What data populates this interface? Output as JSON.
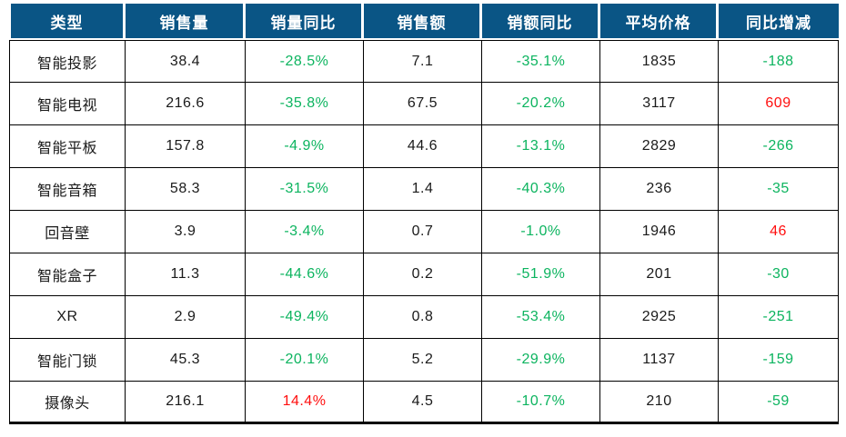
{
  "colors": {
    "header_bg": "#0A5585",
    "header_text": "#FFFFFF",
    "green": "#0CB45F",
    "red": "#FF0F0F",
    "text": "#1A1A1A",
    "border": "#000000"
  },
  "table": {
    "headers": [
      "类型",
      "销售量",
      "销量同比",
      "销售额",
      "销额同比",
      "平均价格",
      "同比增减"
    ],
    "rows": [
      {
        "cells": [
          {
            "text": "智能投影",
            "tone": "default"
          },
          {
            "text": "38.4",
            "tone": "default"
          },
          {
            "text": "-28.5%",
            "tone": "green"
          },
          {
            "text": "7.1",
            "tone": "default"
          },
          {
            "text": "-35.1%",
            "tone": "green"
          },
          {
            "text": "1835",
            "tone": "default"
          },
          {
            "text": "-188",
            "tone": "green"
          }
        ]
      },
      {
        "cells": [
          {
            "text": "智能电视",
            "tone": "default"
          },
          {
            "text": "216.6",
            "tone": "default"
          },
          {
            "text": "-35.8%",
            "tone": "green"
          },
          {
            "text": "67.5",
            "tone": "default"
          },
          {
            "text": "-20.2%",
            "tone": "green"
          },
          {
            "text": "3117",
            "tone": "default"
          },
          {
            "text": "609",
            "tone": "red"
          }
        ]
      },
      {
        "cells": [
          {
            "text": "智能平板",
            "tone": "default"
          },
          {
            "text": "157.8",
            "tone": "default"
          },
          {
            "text": "-4.9%",
            "tone": "green"
          },
          {
            "text": "44.6",
            "tone": "default"
          },
          {
            "text": "-13.1%",
            "tone": "green"
          },
          {
            "text": "2829",
            "tone": "default"
          },
          {
            "text": "-266",
            "tone": "green"
          }
        ]
      },
      {
        "cells": [
          {
            "text": "智能音箱",
            "tone": "default"
          },
          {
            "text": "58.3",
            "tone": "default"
          },
          {
            "text": "-31.5%",
            "tone": "green"
          },
          {
            "text": "1.4",
            "tone": "default"
          },
          {
            "text": "-40.3%",
            "tone": "green"
          },
          {
            "text": "236",
            "tone": "default"
          },
          {
            "text": "-35",
            "tone": "green"
          }
        ]
      },
      {
        "cells": [
          {
            "text": "回音壁",
            "tone": "default"
          },
          {
            "text": "3.9",
            "tone": "default"
          },
          {
            "text": "-3.4%",
            "tone": "green"
          },
          {
            "text": "0.7",
            "tone": "default"
          },
          {
            "text": "-1.0%",
            "tone": "green"
          },
          {
            "text": "1946",
            "tone": "default"
          },
          {
            "text": "46",
            "tone": "red"
          }
        ]
      },
      {
        "cells": [
          {
            "text": "智能盒子",
            "tone": "default"
          },
          {
            "text": "11.3",
            "tone": "default"
          },
          {
            "text": "-44.6%",
            "tone": "green"
          },
          {
            "text": "0.2",
            "tone": "default"
          },
          {
            "text": "-51.9%",
            "tone": "green"
          },
          {
            "text": "201",
            "tone": "default"
          },
          {
            "text": "-30",
            "tone": "green"
          }
        ]
      },
      {
        "cells": [
          {
            "text": "XR",
            "tone": "default"
          },
          {
            "text": "2.9",
            "tone": "default"
          },
          {
            "text": "-49.4%",
            "tone": "green"
          },
          {
            "text": "0.8",
            "tone": "default"
          },
          {
            "text": "-53.4%",
            "tone": "green"
          },
          {
            "text": "2925",
            "tone": "default"
          },
          {
            "text": "-251",
            "tone": "green"
          }
        ]
      },
      {
        "cells": [
          {
            "text": "智能门锁",
            "tone": "default"
          },
          {
            "text": "45.3",
            "tone": "default"
          },
          {
            "text": "-20.1%",
            "tone": "green"
          },
          {
            "text": "5.2",
            "tone": "default"
          },
          {
            "text": "-29.9%",
            "tone": "green"
          },
          {
            "text": "1137",
            "tone": "default"
          },
          {
            "text": "-159",
            "tone": "green"
          }
        ]
      },
      {
        "cells": [
          {
            "text": "摄像头",
            "tone": "default"
          },
          {
            "text": "216.1",
            "tone": "default"
          },
          {
            "text": "14.4%",
            "tone": "red"
          },
          {
            "text": "4.5",
            "tone": "default"
          },
          {
            "text": "-10.7%",
            "tone": "green"
          },
          {
            "text": "210",
            "tone": "default"
          },
          {
            "text": "-59",
            "tone": "green"
          }
        ]
      }
    ]
  },
  "chart_data": {
    "type": "table",
    "columns": [
      "类型",
      "销售量",
      "销量同比",
      "销售额",
      "销额同比",
      "平均价格",
      "同比增减"
    ],
    "rows": [
      [
        "智能投影",
        38.4,
        "-28.5%",
        7.1,
        "-35.1%",
        1835,
        -188
      ],
      [
        "智能电视",
        216.6,
        "-35.8%",
        67.5,
        "-20.2%",
        3117,
        609
      ],
      [
        "智能平板",
        157.8,
        "-4.9%",
        44.6,
        "-13.1%",
        2829,
        -266
      ],
      [
        "智能音箱",
        58.3,
        "-31.5%",
        1.4,
        "-40.3%",
        236,
        -35
      ],
      [
        "回音壁",
        3.9,
        "-3.4%",
        0.7,
        "-1.0%",
        1946,
        46
      ],
      [
        "智能盒子",
        11.3,
        "-44.6%",
        0.2,
        "-51.9%",
        201,
        -30
      ],
      [
        "XR",
        2.9,
        "-49.4%",
        0.8,
        "-53.4%",
        2925,
        -251
      ],
      [
        "智能门锁",
        45.3,
        "-20.1%",
        5.2,
        "-29.9%",
        1137,
        -159
      ],
      [
        "摄像头",
        216.1,
        "14.4%",
        4.5,
        "-10.7%",
        210,
        -59
      ]
    ],
    "color_coding": {
      "green": "negative YoY values",
      "red": "positive YoY values"
    }
  }
}
